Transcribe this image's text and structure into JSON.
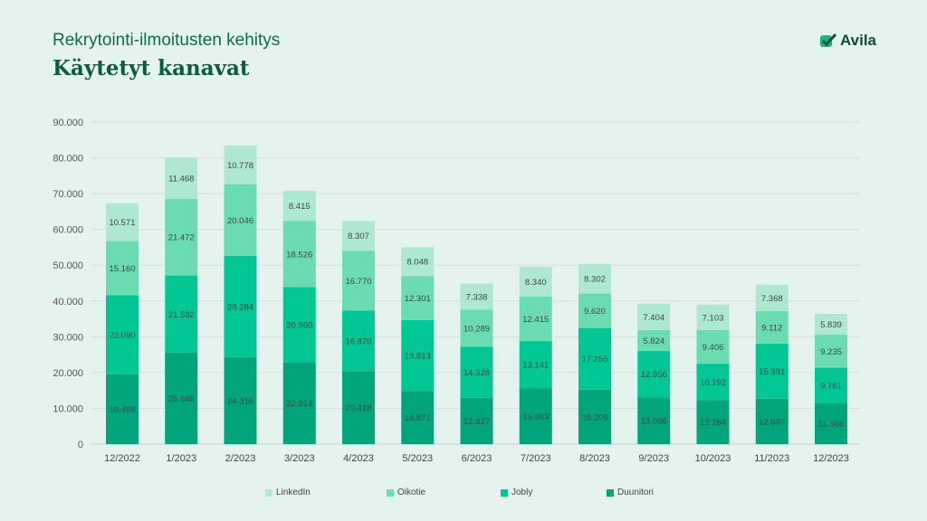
{
  "header": {
    "subtitle": "Rekrytointi-ilmoitusten kehitys",
    "title": "Käytetyt kanavat",
    "logo": "Avila"
  },
  "chart_data": {
    "type": "bar",
    "stacked": true,
    "title": "Käytetyt kanavat",
    "categories": [
      "12/2022",
      "1/2023",
      "2/2023",
      "3/2023",
      "4/2023",
      "5/2023",
      "6/2023",
      "7/2023",
      "8/2023",
      "9/2023",
      "10/2023",
      "11/2023",
      "12/2023"
    ],
    "ylim": [
      0,
      90000
    ],
    "yticks": [
      "0",
      "10.000",
      "20.000",
      "30.000",
      "40.000",
      "50.000",
      "60.000",
      "70.000",
      "80.000",
      "90.000"
    ],
    "legend_position": "bottom",
    "series": [
      {
        "name": "Duunitori",
        "color": "#00a57b",
        "values": [
          19498,
          25548,
          24316,
          22913,
          20418,
          14871,
          12927,
          15663,
          15205,
          13066,
          12284,
          12697,
          11566
        ]
      },
      {
        "name": "Jobly",
        "color": "#00c794",
        "values": [
          22090,
          21582,
          28284,
          20960,
          16870,
          19813,
          14328,
          13141,
          17255,
          12956,
          10192,
          15391,
          9781
        ]
      },
      {
        "name": "Oikotie",
        "color": "#6bdcb2",
        "values": [
          15160,
          21472,
          20046,
          18526,
          16770,
          12301,
          10289,
          12415,
          9620,
          5824,
          9406,
          9112,
          9235
        ]
      },
      {
        "name": "LinkedIn",
        "color": "#aee8d1",
        "values": [
          10571,
          11468,
          10778,
          8415,
          8307,
          8048,
          7338,
          8340,
          8302,
          7404,
          7103,
          7368,
          5839
        ]
      }
    ],
    "legend_order": [
      "LinkedIn",
      "Oikotie",
      "Jobly",
      "Duunitori"
    ]
  }
}
